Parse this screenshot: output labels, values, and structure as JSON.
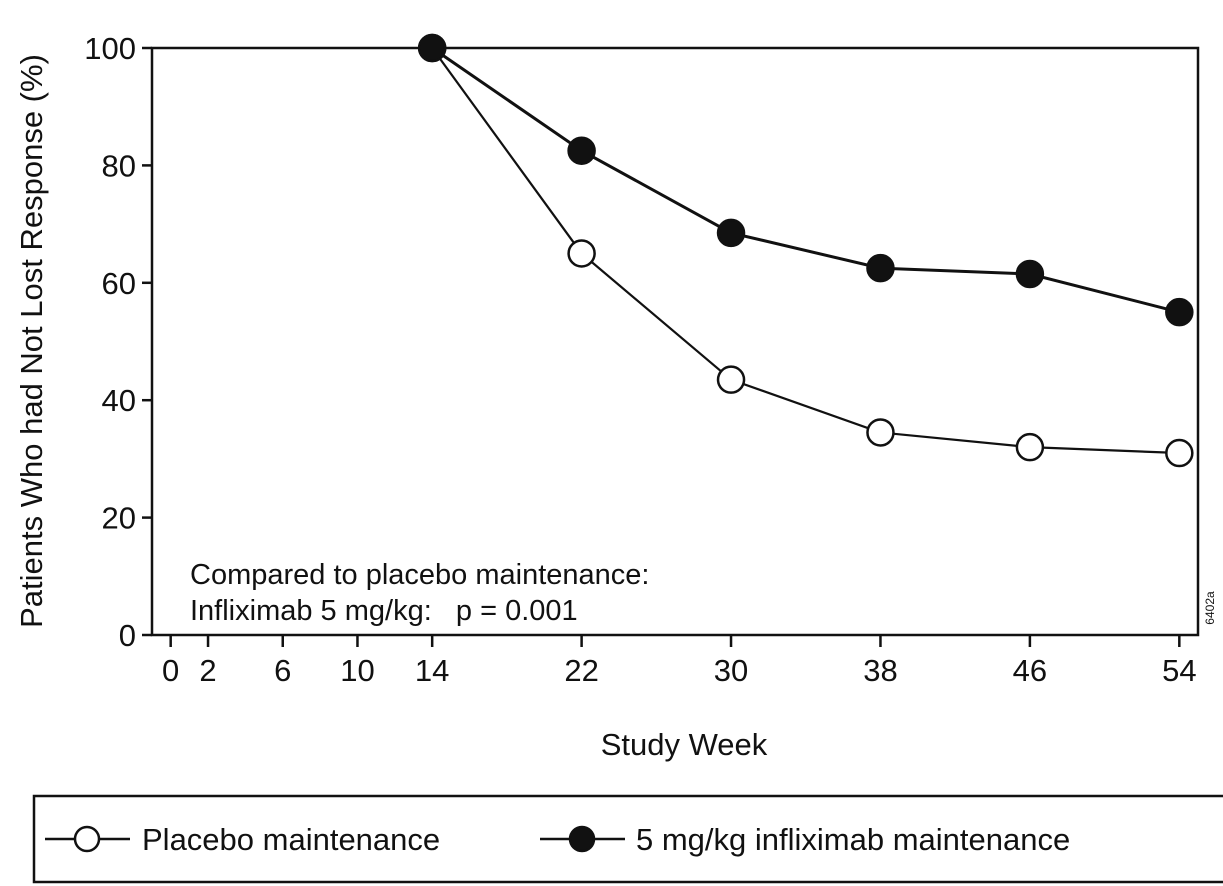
{
  "chart_data": {
    "type": "line",
    "x": [
      14,
      22,
      30,
      38,
      46,
      54
    ],
    "xticks": [
      0,
      2,
      6,
      10,
      14,
      22,
      30,
      38,
      46,
      54
    ],
    "yticks": [
      0,
      20,
      40,
      60,
      80,
      100
    ],
    "xlim": [
      -1,
      55
    ],
    "ylim": [
      0,
      100
    ],
    "xlabel": "Study Week",
    "ylabel": "Patients Who had Not Lost Response (%)",
    "grid": false,
    "legend_position": "bottom",
    "series": [
      {
        "name": "Placebo maintenance",
        "marker": "open-circle",
        "color": "#111111",
        "values": [
          100,
          65,
          43.5,
          34.5,
          32,
          31
        ]
      },
      {
        "name": "5 mg/kg infliximab maintenance",
        "marker": "filled-circle",
        "color": "#111111",
        "values": [
          100,
          82.5,
          68.5,
          62.5,
          61.5,
          55
        ]
      }
    ],
    "annotations": [
      "Compared to placebo maintenance:",
      "Infliximab 5 mg/kg:   p = 0.001"
    ],
    "figure_code": "6402a"
  }
}
